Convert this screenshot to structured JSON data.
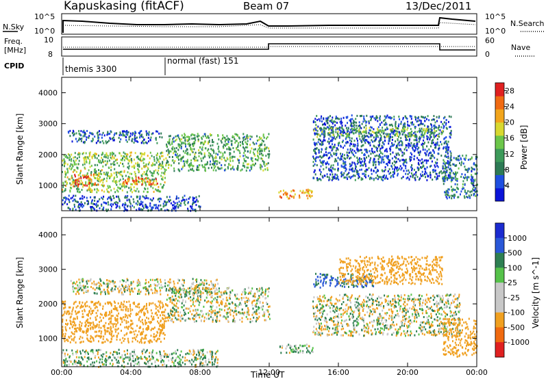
{
  "header": {
    "station": "Kapuskasing (fitACF)",
    "beam": "Beam 07",
    "date": "13/Dec/2011"
  },
  "summary": {
    "nsky_label": "N.Sky",
    "nsky_ticks": [
      "10^5",
      "10^0"
    ],
    "nsearch_label": "N.Search",
    "nsearch_ticks": [
      "10^5",
      "10^0"
    ],
    "freq_label": "Freq.",
    "freq_unit": "[MHz]",
    "freq_ticks": [
      "10",
      "8"
    ],
    "nave_label": "Nave",
    "nave_ticks": [
      "60",
      "0"
    ],
    "cpid_label": "CPID",
    "cpid_segments": [
      {
        "start_hr": 0,
        "end_hr": 6,
        "label": "themis 3300"
      },
      {
        "start_hr": 6,
        "end_hr": 24,
        "label": "normal (fast) 151"
      }
    ]
  },
  "xaxis": {
    "label": "Time UT",
    "ticks": [
      "00:00",
      "04:00",
      "08:00",
      "12:00",
      "16:00",
      "20:00",
      "00:00"
    ],
    "tick_hours": [
      0,
      4,
      8,
      12,
      16,
      20,
      24
    ]
  },
  "colors": {
    "power_scale": [
      "#0a14d8",
      "#1f4fe0",
      "#2d7a55",
      "#3d9a5a",
      "#6cc64a",
      "#d8d830",
      "#f2a51c",
      "#f06a12",
      "#e02020"
    ],
    "velocity_scale": [
      "#1b2bd0",
      "#2a58d8",
      "#2e7f52",
      "#56c24a",
      "#c8c8c8",
      "#c8c8c8",
      "#f0a020",
      "#f06a10",
      "#e02020"
    ]
  },
  "chart_data": [
    {
      "type": "heatmap",
      "name": "power",
      "title": "",
      "xlabel": "Time UT",
      "ylabel": "Slant Range [km]",
      "xlim": [
        0,
        24
      ],
      "ylim": [
        180,
        4500
      ],
      "yticks": [
        1000,
        2000,
        3000,
        4000
      ],
      "colorbar": {
        "label": "Power [dB]",
        "ticks": [
          "4",
          "8",
          "12",
          "16",
          "20",
          "24",
          "28"
        ],
        "range": [
          0,
          30
        ]
      },
      "bands": [
        {
          "t0": 0.0,
          "t1": 6.0,
          "r0": 800,
          "r1": 2100,
          "value": 15
        },
        {
          "t0": 0.3,
          "t1": 5.8,
          "r0": 2400,
          "r1": 2800,
          "value": 6
        },
        {
          "t0": 0.6,
          "t1": 2.2,
          "r0": 1000,
          "r1": 1400,
          "value": 24
        },
        {
          "t0": 3.5,
          "t1": 5.5,
          "r0": 1050,
          "r1": 1300,
          "value": 26
        },
        {
          "t0": 6.0,
          "t1": 12.0,
          "r0": 1500,
          "r1": 2700,
          "value": 12
        },
        {
          "t0": 12.5,
          "t1": 14.5,
          "r0": 600,
          "r1": 900,
          "value": 22
        },
        {
          "t0": 14.5,
          "t1": 22.5,
          "r0": 1200,
          "r1": 3300,
          "value": 6
        },
        {
          "t0": 14.5,
          "t1": 22.0,
          "r0": 2600,
          "r1": 2900,
          "value": 14
        },
        {
          "t0": 22.0,
          "t1": 24.0,
          "r0": 600,
          "r1": 2000,
          "value": 9
        },
        {
          "t0": 0.0,
          "t1": 8.0,
          "r0": 200,
          "r1": 700,
          "value": 5
        }
      ]
    },
    {
      "type": "heatmap",
      "name": "velocity",
      "title": "",
      "xlabel": "Time UT",
      "ylabel": "Slant Range [km]",
      "xlim": [
        0,
        24
      ],
      "ylim": [
        180,
        4500
      ],
      "yticks": [
        1000,
        2000,
        3000,
        4000
      ],
      "colorbar": {
        "label": "Velocity [m s^-1]",
        "ticks": [
          "1000",
          "500",
          "100",
          "25",
          "-25",
          "-100",
          "-500",
          "-1000"
        ]
      },
      "bands": [
        {
          "t0": 0.0,
          "t1": 6.0,
          "r0": 900,
          "r1": 2100,
          "value": -150
        },
        {
          "t0": 0.5,
          "t1": 9.0,
          "r0": 2300,
          "r1": 2750,
          "value": 0
        },
        {
          "t0": 6.0,
          "t1": 12.0,
          "r0": 1500,
          "r1": 2500,
          "value": 0
        },
        {
          "t0": 12.5,
          "t1": 14.5,
          "r0": 600,
          "r1": 850,
          "value": 50
        },
        {
          "t0": 14.5,
          "t1": 18.0,
          "r0": 2500,
          "r1": 2900,
          "value": 300
        },
        {
          "t0": 16.0,
          "t1": 22.0,
          "r0": 2600,
          "r1": 3400,
          "value": -200
        },
        {
          "t0": 14.5,
          "t1": 23.0,
          "r0": 1100,
          "r1": 2300,
          "value": 0
        },
        {
          "t0": 22.0,
          "t1": 24.0,
          "r0": 500,
          "r1": 1600,
          "value": -150
        },
        {
          "t0": 0.0,
          "t1": 9.0,
          "r0": 200,
          "r1": 700,
          "value": 60
        }
      ]
    }
  ]
}
